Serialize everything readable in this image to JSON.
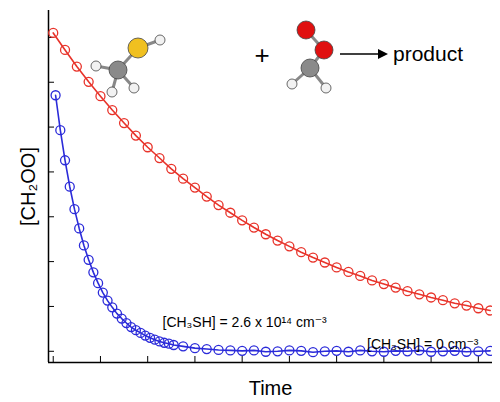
{
  "chart_data": {
    "type": "scatter",
    "x_label": "Time",
    "y_label": "[CH₂OO]",
    "xlim": [
      -0.1,
      9.3
    ],
    "xticks": [
      0,
      1,
      2,
      3,
      4,
      5,
      6,
      7,
      8,
      9
    ],
    "ylim": [
      -0.25,
      7.6
    ],
    "yticks": [
      0,
      1,
      2,
      3,
      4,
      5,
      6,
      7
    ],
    "tick_labels": false,
    "grid": false,
    "annotations": [
      "+",
      "product"
    ],
    "series": [
      {
        "name": "[CH₃SH] = 0 cm⁻³",
        "color": "#e8332a",
        "marker": "circle",
        "line_style": "solid",
        "x": [
          0,
          0.25,
          0.5,
          0.75,
          1,
          1.25,
          1.5,
          1.75,
          2,
          2.25,
          2.5,
          2.75,
          3,
          3.25,
          3.5,
          3.75,
          4,
          4.25,
          4.5,
          4.75,
          5,
          5.25,
          5.5,
          5.75,
          6,
          6.25,
          6.5,
          6.75,
          7,
          7.25,
          7.5,
          7.75,
          8,
          8.25,
          8.5,
          8.75,
          9,
          9.25
        ],
        "values": [
          7.1,
          6.72,
          6.35,
          6.01,
          5.69,
          5.38,
          5.09,
          4.81,
          4.55,
          4.31,
          4.07,
          3.85,
          3.65,
          3.45,
          3.26,
          3.09,
          2.92,
          2.76,
          2.61,
          2.47,
          2.34,
          2.21,
          2.09,
          1.98,
          1.87,
          1.77,
          1.68,
          1.58,
          1.5,
          1.42,
          1.34,
          1.27,
          1.2,
          1.14,
          1.07,
          1.02,
          0.96,
          0.91
        ]
      },
      {
        "name": "[CH₃SH] = 2.6 x 10¹⁴ cm⁻³",
        "color": "#2b2bd9",
        "marker": "circle",
        "line_style": "solid",
        "x": [
          0.05,
          0.15,
          0.25,
          0.35,
          0.45,
          0.55,
          0.65,
          0.75,
          0.85,
          0.95,
          1.05,
          1.15,
          1.25,
          1.35,
          1.45,
          1.55,
          1.65,
          1.75,
          1.85,
          1.95,
          2.05,
          2.15,
          2.25,
          2.35,
          2.45,
          2.55,
          2.75,
          3,
          3.25,
          3.5,
          3.75,
          4,
          4.25,
          4.5,
          4.75,
          5,
          5.25,
          5.5,
          5.75,
          6,
          6.25,
          6.5,
          6.75,
          7,
          7.25,
          7.5,
          7.75,
          8,
          8.25,
          8.5,
          8.75,
          9,
          9.25
        ],
        "values": [
          5.71,
          4.93,
          4.26,
          3.67,
          3.17,
          2.74,
          2.36,
          2.04,
          1.76,
          1.52,
          1.31,
          1.13,
          0.98,
          0.84,
          0.73,
          0.63,
          0.54,
          0.47,
          0.41,
          0.35,
          0.3,
          0.26,
          0.22,
          0.19,
          0.17,
          0.14,
          0.11,
          0.07,
          0.05,
          0.03,
          0.02,
          0.01,
          0.02,
          -0.01,
          0.0,
          0.02,
          0.01,
          -0.02,
          0.0,
          0.01,
          -0.01,
          0.02,
          0.0,
          -0.01,
          0.01,
          0.0,
          0.02,
          -0.01,
          0.0,
          0.01,
          -0.01,
          0.0,
          0.01
        ]
      }
    ]
  }
}
